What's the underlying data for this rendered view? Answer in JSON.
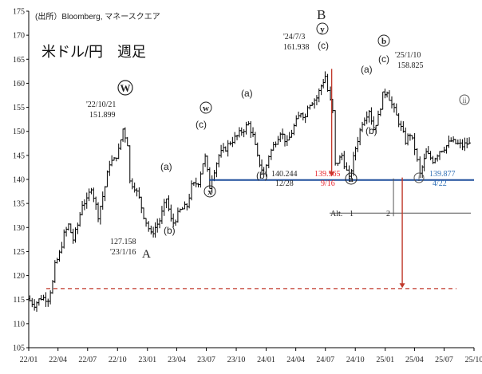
{
  "chart_data": {
    "type": "ohlc",
    "source_note": "(出所）Bloomberg, マネースクエア",
    "title": "米ドル/円　週足",
    "ylim": [
      105,
      175
    ],
    "yticks": [
      105,
      110,
      115,
      120,
      125,
      130,
      135,
      140,
      145,
      150,
      155,
      160,
      165,
      170,
      175
    ],
    "xlim": [
      "2022-01-01",
      "2025-10-01"
    ],
    "xticks": [
      "22/01",
      "22/04",
      "22/07",
      "22/10",
      "23/01",
      "23/04",
      "23/07",
      "23/10",
      "24/01",
      "24/04",
      "24/07",
      "24/10",
      "25/01",
      "25/04",
      "25/07",
      "25/10"
    ],
    "grid": false,
    "price_path": [
      [
        "2022-01-01",
        115.2
      ],
      [
        "2022-01-22",
        114.0
      ],
      [
        "2022-02-12",
        115.4
      ],
      [
        "2022-03-05",
        115.2
      ],
      [
        "2022-03-19",
        118.5
      ],
      [
        "2022-03-26",
        122.0
      ],
      [
        "2022-04-09",
        124.5
      ],
      [
        "2022-04-23",
        128.5
      ],
      [
        "2022-05-07",
        130.5
      ],
      [
        "2022-05-21",
        127.5
      ],
      [
        "2022-06-04",
        130.5
      ],
      [
        "2022-06-18",
        135.0
      ],
      [
        "2022-07-02",
        135.5
      ],
      [
        "2022-07-16",
        138.5
      ],
      [
        "2022-08-06",
        132.5
      ],
      [
        "2022-08-27",
        138.5
      ],
      [
        "2022-09-10",
        143.5
      ],
      [
        "2022-09-24",
        144.0
      ],
      [
        "2022-10-08",
        146.0
      ],
      [
        "2022-10-21",
        150.5
      ],
      [
        "2022-11-04",
        147.5
      ],
      [
        "2022-11-12",
        139.5
      ],
      [
        "2022-11-26",
        138.5
      ],
      [
        "2022-12-10",
        136.0
      ],
      [
        "2022-12-24",
        132.5
      ],
      [
        "2023-01-16",
        128.5
      ],
      [
        "2023-01-28",
        130.0
      ],
      [
        "2023-02-11",
        131.5
      ],
      [
        "2023-03-04",
        136.0
      ],
      [
        "2023-03-18",
        131.5
      ],
      [
        "2023-03-25",
        131.0
      ],
      [
        "2023-04-15",
        133.5
      ],
      [
        "2023-05-06",
        134.5
      ],
      [
        "2023-05-20",
        138.5
      ],
      [
        "2023-06-10",
        139.5
      ],
      [
        "2023-06-24",
        143.5
      ],
      [
        "2023-07-01",
        144.5
      ],
      [
        "2023-07-15",
        138.5
      ],
      [
        "2023-07-22",
        140.5
      ],
      [
        "2023-08-12",
        145.0
      ],
      [
        "2023-09-02",
        146.5
      ],
      [
        "2023-09-16",
        147.8
      ],
      [
        "2023-10-07",
        149.0
      ],
      [
        "2023-10-21",
        150.0
      ],
      [
        "2023-11-11",
        151.5
      ],
      [
        "2023-11-25",
        149.0
      ],
      [
        "2023-12-09",
        144.5
      ],
      [
        "2023-12-28",
        141.0
      ],
      [
        "2024-01-13",
        145.0
      ],
      [
        "2024-02-03",
        148.0
      ],
      [
        "2024-02-17",
        150.0
      ],
      [
        "2024-03-09",
        147.5
      ],
      [
        "2024-03-30",
        151.0
      ],
      [
        "2024-04-20",
        154.0
      ],
      [
        "2024-05-04",
        153.0
      ],
      [
        "2024-05-11",
        155.5
      ],
      [
        "2024-06-08",
        157.0
      ],
      [
        "2024-06-22",
        159.5
      ],
      [
        "2024-07-03",
        161.5
      ],
      [
        "2024-07-13",
        158.5
      ],
      [
        "2024-07-27",
        154.0
      ],
      [
        "2024-08-05",
        143.0
      ],
      [
        "2024-08-24",
        145.0
      ],
      [
        "2024-09-16",
        140.0
      ],
      [
        "2024-10-05",
        146.5
      ],
      [
        "2024-10-26",
        152.0
      ],
      [
        "2024-11-16",
        154.5
      ],
      [
        "2024-11-30",
        150.5
      ],
      [
        "2024-12-14",
        153.0
      ],
      [
        "2024-12-28",
        157.5
      ],
      [
        "2025-01-10",
        158.5
      ],
      [
        "2025-01-25",
        155.5
      ],
      [
        "2025-02-15",
        152.0
      ],
      [
        "2025-03-08",
        148.0
      ],
      [
        "2025-03-22",
        149.5
      ],
      [
        "2025-04-05",
        146.5
      ],
      [
        "2025-04-22",
        141.0
      ],
      [
        "2025-05-10",
        145.5
      ],
      [
        "2025-05-31",
        144.0
      ],
      [
        "2025-06-21",
        146.0
      ],
      [
        "2025-07-12",
        147.0
      ],
      [
        "2025-07-26",
        148.0
      ],
      [
        "2025-08-09",
        147.5
      ],
      [
        "2025-08-30",
        147.0
      ],
      [
        "2025-09-13",
        147.5
      ],
      [
        "2025-09-20",
        147.3
      ]
    ],
    "support_line": {
      "value": 139.877,
      "color": "#1F4E9C"
    },
    "target_line": {
      "value": 117.3,
      "color": "#C0392B",
      "style": "dashed"
    },
    "alt_projection": {
      "range_top": 133.0,
      "label_y": 130.8,
      "x1": "2024-07-03",
      "x2": "2025-02-15",
      "lbl_alt": "Alt.",
      "lbl_1": "1",
      "lbl_2": "2"
    },
    "red_arrows": [
      {
        "x": "2024-07-13",
        "from": 163.0,
        "to": 140.6,
        "color": "#C0392B"
      },
      {
        "x": "2025-02-15",
        "from": 140.4,
        "to": 117.4,
        "color": "#C0392B"
      }
    ],
    "annotations": {
      "high_2022": {
        "date": "'22/10/21",
        "value": "151.899"
      },
      "low_2023": {
        "value": "127.158",
        "date": "'23/1/16"
      },
      "high_2024": {
        "date": "'24/7/3",
        "value": "161.938"
      },
      "high_2025": {
        "date": "'25/1/10",
        "value": "158.825"
      },
      "low_2023_dec": {
        "value": "140.244",
        "date": "12/28"
      },
      "low_2024_sep": {
        "value": "139.565",
        "date": "9/16",
        "color": "#E8242B"
      },
      "low_2025_apr": {
        "value": "139.877",
        "date": "4/22",
        "color": "#2F6FB5"
      },
      "wave_W": "W",
      "wave_A": "A",
      "wave_B": "B",
      "wave_w": "w",
      "wave_x": "x",
      "wave_y": "y",
      "wave_a": "a",
      "wave_b": "b",
      "wave_i": "i",
      "wave_ii": "ii",
      "sub_a": "(a)",
      "sub_b": "(b)",
      "sub_c": "(c)"
    }
  }
}
